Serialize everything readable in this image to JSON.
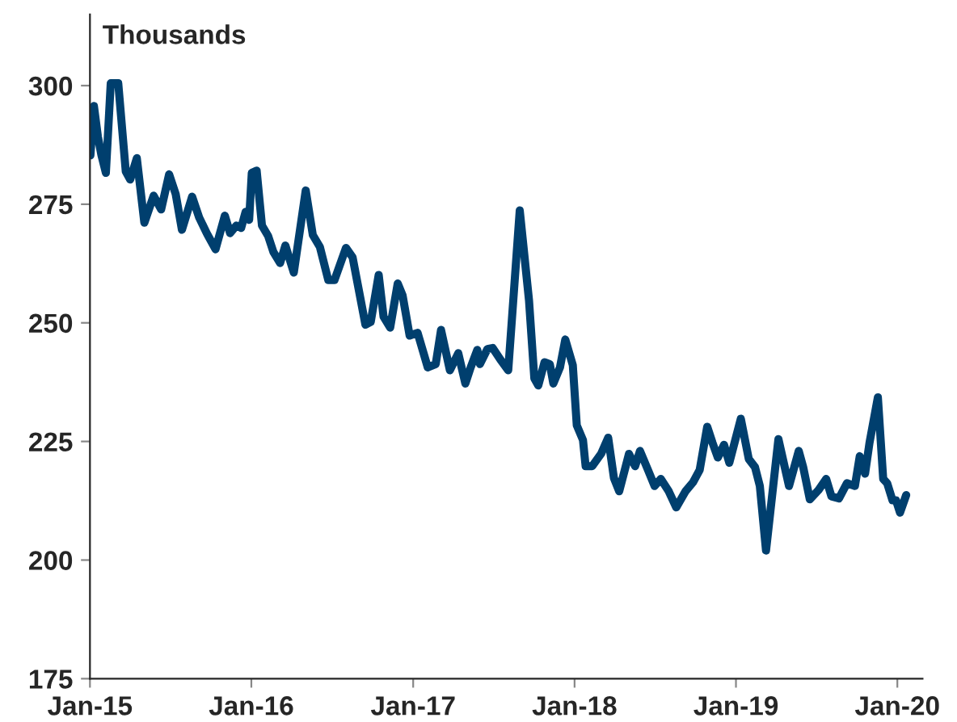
{
  "chart_data": {
    "type": "line",
    "ylabel": "Thousands",
    "x": [
      "2015-01-02",
      "2015-01-10",
      "2015-01-19",
      "2015-01-27",
      "2015-02-06",
      "2015-02-17",
      "2015-03-06",
      "2015-03-23",
      "2015-04-02",
      "2015-04-17",
      "2015-05-04",
      "2015-05-25",
      "2015-06-11",
      "2015-06-29",
      "2015-07-14",
      "2015-07-28",
      "2015-08-20",
      "2015-09-05",
      "2015-09-22",
      "2015-10-12",
      "2015-11-02",
      "2015-11-14",
      "2015-11-28",
      "2015-12-09",
      "2015-12-19",
      "2015-12-27",
      "2016-01-02",
      "2016-01-13",
      "2016-01-25",
      "2016-02-08",
      "2016-02-20",
      "2016-03-06",
      "2016-03-18",
      "2016-04-06",
      "2016-05-03",
      "2016-05-19",
      "2016-06-04",
      "2016-06-23",
      "2016-07-07",
      "2016-08-02",
      "2016-08-17",
      "2016-09-15",
      "2016-09-27",
      "2016-10-15",
      "2016-10-26",
      "2016-11-10",
      "2016-11-27",
      "2016-12-08",
      "2016-12-24",
      "2017-01-11",
      "2017-02-03",
      "2017-02-21",
      "2017-03-05",
      "2017-03-13",
      "2017-03-25",
      "2017-04-13",
      "2017-04-29",
      "2017-05-11",
      "2017-05-26",
      "2017-06-01",
      "2017-06-18",
      "2017-06-30",
      "2017-07-17",
      "2017-08-04",
      "2017-08-30",
      "2017-09-20",
      "2017-10-02",
      "2017-10-11",
      "2017-10-25",
      "2017-11-06",
      "2017-11-14",
      "2017-11-29",
      "2017-12-11",
      "2017-12-28",
      "2018-01-06",
      "2018-01-20",
      "2018-01-26",
      "2018-02-10",
      "2018-03-02",
      "2018-03-18",
      "2018-03-31",
      "2018-04-12",
      "2018-05-04",
      "2018-05-18",
      "2018-05-29",
      "2018-06-16",
      "2018-07-01",
      "2018-07-15",
      "2018-08-02",
      "2018-08-19",
      "2018-09-09",
      "2018-09-26",
      "2018-10-11",
      "2018-10-28",
      "2018-11-09",
      "2018-11-21",
      "2018-12-05",
      "2018-12-17",
      "2019-01-12",
      "2019-01-30",
      "2019-02-13",
      "2019-02-24",
      "2019-03-10",
      "2019-04-07",
      "2019-05-01",
      "2019-05-23",
      "2019-06-02",
      "2019-06-17",
      "2019-07-07",
      "2019-07-24",
      "2019-08-05",
      "2019-08-22",
      "2019-09-09",
      "2019-09-27",
      "2019-10-08",
      "2019-10-20",
      "2019-10-30",
      "2019-11-18",
      "2019-11-30",
      "2019-12-09",
      "2019-12-21",
      "2019-12-29",
      "2020-01-07",
      "2020-01-21"
    ],
    "series": [
      {
        "color": "#003f6e",
        "values": [
          285.3,
          295.7,
          289.2,
          285.3,
          281.6,
          300.5,
          300.5,
          281.9,
          280.2,
          284.7,
          271.1,
          276.8,
          273.9,
          281.3,
          277.1,
          269.6,
          276.6,
          272.2,
          268.9,
          265.5,
          272.6,
          268.9,
          270.5,
          270,
          273.4,
          271.7,
          281.6,
          282.1,
          270.5,
          268.3,
          264.9,
          262.6,
          266.3,
          260.6,
          277.9,
          268.5,
          266,
          259,
          259,
          265.8,
          263.8,
          249.6,
          250.2,
          260.1,
          251.3,
          249,
          258.3,
          255.8,
          247.3,
          247.9,
          240.6,
          241.3,
          248.5,
          245.1,
          240,
          243.6,
          237.2,
          240.6,
          244.3,
          241.3,
          244.5,
          244.7,
          242.3,
          240,
          273.7,
          254.7,
          238.3,
          236.8,
          241.7,
          241.3,
          237.2,
          240.6,
          246.5,
          241.1,
          228.4,
          225.3,
          219.8,
          219.8,
          222.4,
          225.8,
          217.3,
          214.5,
          222.4,
          219.8,
          223,
          219,
          215.6,
          217.1,
          214.5,
          211.1,
          214.5,
          216.4,
          219,
          228.1,
          224.7,
          221.6,
          224.3,
          220.5,
          229.8,
          221.3,
          219.6,
          215.6,
          202,
          225.5,
          215.6,
          223,
          219.6,
          212.8,
          214.8,
          217.1,
          213.4,
          213,
          216.2,
          215.6,
          221.9,
          218.2,
          224.7,
          234.3,
          217.1,
          216.2,
          212.6,
          212.6,
          210,
          213.7
        ]
      }
    ],
    "xlim": [
      "2015-01-01",
      "2020-02-27"
    ],
    "xticks": [
      {
        "value": "2015-01-01",
        "label": "Jan-15"
      },
      {
        "value": "2016-01-01",
        "label": "Jan-16"
      },
      {
        "value": "2017-01-01",
        "label": "Jan-17"
      },
      {
        "value": "2018-01-01",
        "label": "Jan-18"
      },
      {
        "value": "2019-01-01",
        "label": "Jan-19"
      },
      {
        "value": "2020-01-01",
        "label": "Jan-20"
      }
    ],
    "ylim": [
      175,
      315
    ],
    "yticks": [
      175,
      200,
      225,
      250,
      275,
      300
    ],
    "grid": false,
    "legend": false,
    "marker": "none",
    "line_style": "solid"
  }
}
